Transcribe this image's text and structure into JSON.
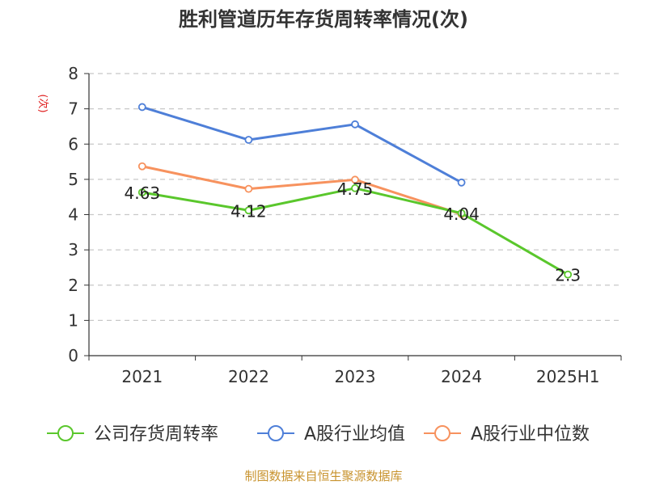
{
  "chart_data": {
    "type": "line",
    "title": "胜利管道历年存货周转率情况(次)",
    "ylabel": "(次)",
    "xlabel": "",
    "categories": [
      "2021",
      "2022",
      "2023",
      "2024",
      "2025H1"
    ],
    "ylim": [
      0,
      8
    ],
    "yticks": [
      0,
      1,
      2,
      3,
      4,
      5,
      6,
      7,
      8
    ],
    "grid": true,
    "legend_position": "bottom",
    "series": [
      {
        "name": "公司存货周转率",
        "color": "#5ac72c",
        "values": [
          4.63,
          4.12,
          4.75,
          4.04,
          2.3
        ],
        "labels": [
          "4.63",
          "4.12",
          "4.75",
          "4.04",
          "2.3"
        ]
      },
      {
        "name": "A股行业均值",
        "color": "#4e7fd8",
        "values": [
          7.05,
          6.12,
          6.56,
          4.91,
          null
        ]
      },
      {
        "name": "A股行业中位数",
        "color": "#f7925e",
        "values": [
          5.37,
          4.73,
          4.99,
          4.01,
          null
        ]
      }
    ]
  },
  "source_note": "制图数据来自恒生聚源数据库"
}
